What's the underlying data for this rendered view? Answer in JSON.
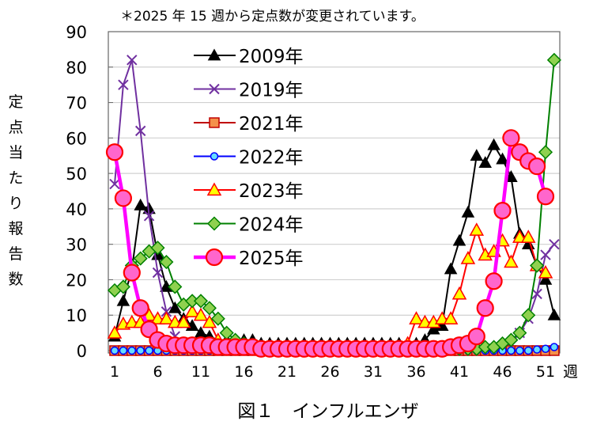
{
  "chart_data": {
    "type": "line",
    "title": "＊2025 年 15 週から定点数が変更されています。",
    "caption": "図１　インフルエンザ",
    "xlabel": "週",
    "ylabel": "定点当たり報告数",
    "ylim": [
      0,
      90
    ],
    "yticks": [
      "0",
      "10",
      "20",
      "30",
      "40",
      "50",
      "60",
      "70",
      "80",
      "90"
    ],
    "xticks": [
      "1",
      "6",
      "11",
      "16",
      "21",
      "26",
      "31",
      "36",
      "41",
      "46",
      "51"
    ],
    "xlim": [
      1,
      53
    ],
    "grid": true,
    "legend_position": "top-center",
    "series": [
      {
        "name": "2009年",
        "color": "#000000",
        "fill": "#000000",
        "marker": "triangle",
        "values": [
          4,
          14,
          23,
          41,
          40,
          27,
          18,
          12,
          9,
          7,
          5,
          4,
          3,
          3,
          3,
          3,
          3,
          2,
          2,
          2,
          2,
          2,
          2,
          2,
          2,
          2,
          2,
          2,
          2,
          2,
          2,
          2,
          2,
          2,
          2,
          2,
          3,
          6,
          7,
          23,
          31,
          39,
          55,
          53,
          58,
          54,
          49,
          33,
          30,
          24,
          20,
          10,
          null
        ]
      },
      {
        "name": "2019年",
        "color": "#7030a0",
        "fill": "#7030a0",
        "marker": "x",
        "values": [
          47,
          75,
          82,
          62,
          38,
          22,
          11,
          4,
          2,
          1,
          1,
          1,
          1,
          1,
          0.5,
          0.5,
          0.5,
          null,
          null,
          null,
          null,
          null,
          null,
          null,
          null,
          null,
          null,
          null,
          null,
          null,
          null,
          null,
          null,
          null,
          null,
          null,
          null,
          null,
          null,
          null,
          null,
          null,
          null,
          0.3,
          0.5,
          1,
          2,
          5,
          9,
          16,
          27,
          30,
          null
        ]
      },
      {
        "name": "2021年",
        "color": "#c00000",
        "fill": "#f4904a",
        "marker": "square",
        "values": [
          0,
          0,
          0,
          0,
          0,
          0,
          0,
          0,
          0,
          0,
          0,
          0,
          0,
          0,
          0,
          0,
          0,
          0,
          0,
          0,
          0,
          0,
          0,
          0,
          0,
          0,
          0,
          0,
          0,
          0,
          0,
          0,
          0,
          0,
          0,
          0,
          0,
          0,
          0,
          0,
          0,
          0,
          0,
          0,
          0,
          0,
          0,
          0,
          0,
          0,
          0,
          0,
          null
        ]
      },
      {
        "name": "2022年",
        "color": "#0000ff",
        "fill": "#66ddff",
        "marker": "circle-small",
        "values": [
          0,
          0,
          0,
          0,
          0,
          0,
          0,
          0,
          0,
          0,
          0,
          0,
          0,
          0,
          0,
          0,
          0,
          0,
          0,
          0,
          0,
          0,
          0,
          0,
          0,
          0,
          0,
          0,
          0,
          0,
          0,
          0,
          0,
          0,
          0,
          0,
          0,
          0,
          0,
          0,
          0,
          0,
          0,
          0,
          0,
          0,
          0,
          0,
          0,
          0.3,
          0.5,
          1,
          null
        ]
      },
      {
        "name": "2023年",
        "color": "#ff0000",
        "fill": "#ffff00",
        "marker": "triangle",
        "values": [
          5,
          7.5,
          8,
          8,
          10,
          9,
          9,
          8,
          8,
          11,
          10,
          8,
          3,
          2,
          1,
          1,
          1,
          0.5,
          0.5,
          0.5,
          0.5,
          0.5,
          0.5,
          0.5,
          0.5,
          0.5,
          0.5,
          0.5,
          0.5,
          0.5,
          0.5,
          0.5,
          0.5,
          1,
          2,
          9,
          8,
          8,
          9,
          9,
          16,
          26,
          34,
          27,
          28,
          31,
          25,
          32,
          32,
          24,
          22,
          null,
          null
        ]
      },
      {
        "name": "2024年",
        "color": "#008000",
        "fill": "#8fd14f",
        "marker": "diamond",
        "values": [
          17,
          18,
          24,
          26,
          28,
          29,
          25,
          18,
          13,
          14,
          14,
          12,
          9,
          5,
          3,
          2,
          1,
          1,
          0.5,
          0.5,
          0.5,
          0.5,
          0.5,
          0.5,
          0.5,
          0.5,
          0.5,
          0.5,
          0.5,
          0.5,
          0.5,
          0.5,
          0.5,
          0.5,
          0.5,
          0.5,
          0.5,
          0.5,
          0.5,
          0.5,
          0.5,
          0.5,
          0.5,
          1,
          1,
          2,
          3,
          5,
          10,
          24,
          56,
          82,
          null
        ]
      },
      {
        "name": "2025年",
        "color": "#ff00ff",
        "fill": "#ff66cc",
        "edge": "#ff0000",
        "marker": "circle-large",
        "values": [
          56,
          43,
          22,
          12,
          6,
          3,
          2,
          1.5,
          1.5,
          1.5,
          1.5,
          1.5,
          1,
          1,
          1,
          1,
          1,
          0.5,
          0.5,
          0.5,
          0.5,
          0.5,
          0.5,
          0.5,
          0.5,
          0.5,
          0.5,
          0.5,
          0.5,
          0.5,
          0.5,
          0.5,
          0.5,
          0.5,
          0.5,
          0.5,
          0.5,
          0.5,
          0.5,
          1,
          1.5,
          2,
          4,
          12,
          19.6,
          39.5,
          60,
          56,
          53.5,
          52,
          43.5,
          null,
          null
        ]
      }
    ]
  }
}
